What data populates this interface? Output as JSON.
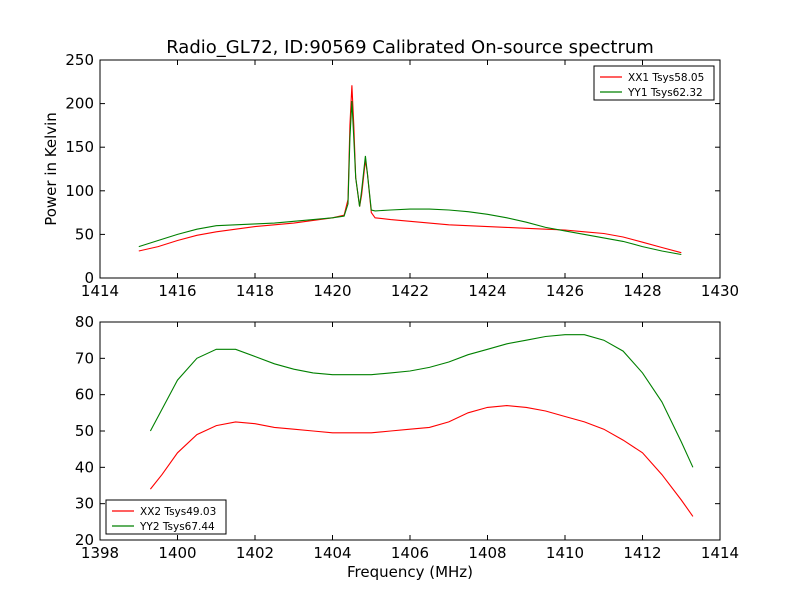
{
  "figure": {
    "title": "Radio_GL72, ID:90569 Calibrated On-source spectrum",
    "xlabel": "Frequency (MHz)"
  },
  "chart_data": [
    {
      "type": "line",
      "ylabel": "Power in Kelvin",
      "xlim": [
        1414,
        1430
      ],
      "ylim": [
        0,
        250
      ],
      "xticks": [
        1414,
        1416,
        1418,
        1420,
        1422,
        1424,
        1426,
        1428,
        1430
      ],
      "yticks": [
        0,
        50,
        100,
        150,
        200,
        250
      ],
      "legend_position": "top-right",
      "series": [
        {
          "name": "XX1 Tsys58.05",
          "color": "#ff0000",
          "points": [
            [
              1415.0,
              31
            ],
            [
              1415.5,
              36
            ],
            [
              1416.0,
              43
            ],
            [
              1416.5,
              49
            ],
            [
              1417.0,
              53
            ],
            [
              1417.5,
              56
            ],
            [
              1418.0,
              59
            ],
            [
              1418.5,
              61
            ],
            [
              1419.0,
              63
            ],
            [
              1419.5,
              66
            ],
            [
              1420.0,
              69
            ],
            [
              1420.3,
              72
            ],
            [
              1420.4,
              90
            ],
            [
              1420.45,
              175
            ],
            [
              1420.5,
              221
            ],
            [
              1420.55,
              175
            ],
            [
              1420.6,
              115
            ],
            [
              1420.7,
              82
            ],
            [
              1420.75,
              95
            ],
            [
              1420.85,
              135
            ],
            [
              1420.9,
              120
            ],
            [
              1421.0,
              75
            ],
            [
              1421.1,
              69
            ],
            [
              1421.5,
              67
            ],
            [
              1422.0,
              65
            ],
            [
              1422.5,
              63
            ],
            [
              1423.0,
              61
            ],
            [
              1423.5,
              60
            ],
            [
              1424.0,
              59
            ],
            [
              1424.5,
              58
            ],
            [
              1425.0,
              57
            ],
            [
              1425.5,
              56
            ],
            [
              1426.0,
              55
            ],
            [
              1426.5,
              53
            ],
            [
              1427.0,
              51
            ],
            [
              1427.5,
              47
            ],
            [
              1428.0,
              41
            ],
            [
              1428.5,
              35
            ],
            [
              1429.0,
              29
            ]
          ]
        },
        {
          "name": "YY1 Tsys62.32",
          "color": "#008000",
          "points": [
            [
              1415.0,
              36
            ],
            [
              1415.5,
              43
            ],
            [
              1416.0,
              50
            ],
            [
              1416.5,
              56
            ],
            [
              1417.0,
              60
            ],
            [
              1417.5,
              61
            ],
            [
              1418.0,
              62
            ],
            [
              1418.5,
              63
            ],
            [
              1419.0,
              65
            ],
            [
              1419.5,
              67
            ],
            [
              1420.0,
              69
            ],
            [
              1420.3,
              71
            ],
            [
              1420.4,
              85
            ],
            [
              1420.45,
              160
            ],
            [
              1420.5,
              203
            ],
            [
              1420.55,
              160
            ],
            [
              1420.6,
              115
            ],
            [
              1420.7,
              82
            ],
            [
              1420.75,
              100
            ],
            [
              1420.85,
              140
            ],
            [
              1420.9,
              120
            ],
            [
              1421.0,
              78
            ],
            [
              1421.1,
              77
            ],
            [
              1421.5,
              78
            ],
            [
              1422.0,
              79
            ],
            [
              1422.5,
              79
            ],
            [
              1423.0,
              78
            ],
            [
              1423.5,
              76
            ],
            [
              1424.0,
              73
            ],
            [
              1424.5,
              69
            ],
            [
              1425.0,
              64
            ],
            [
              1425.5,
              58
            ],
            [
              1426.0,
              54
            ],
            [
              1426.5,
              50
            ],
            [
              1427.0,
              46
            ],
            [
              1427.5,
              42
            ],
            [
              1428.0,
              36
            ],
            [
              1428.5,
              31
            ],
            [
              1429.0,
              27
            ]
          ]
        }
      ]
    },
    {
      "type": "line",
      "xlabel": "Frequency (MHz)",
      "xlim": [
        1398,
        1414
      ],
      "ylim": [
        20,
        80
      ],
      "xticks": [
        1398,
        1400,
        1402,
        1404,
        1406,
        1408,
        1410,
        1412,
        1414
      ],
      "yticks": [
        20,
        30,
        40,
        50,
        60,
        70,
        80
      ],
      "legend_position": "bottom-left",
      "series": [
        {
          "name": "XX2 Tsys49.03",
          "color": "#ff0000",
          "points": [
            [
              1399.3,
              34
            ],
            [
              1399.6,
              38
            ],
            [
              1400.0,
              44
            ],
            [
              1400.5,
              49
            ],
            [
              1401.0,
              51.5
            ],
            [
              1401.5,
              52.5
            ],
            [
              1402.0,
              52
            ],
            [
              1402.5,
              51
            ],
            [
              1403.0,
              50.5
            ],
            [
              1403.5,
              50
            ],
            [
              1404.0,
              49.5
            ],
            [
              1404.5,
              49.5
            ],
            [
              1405.0,
              49.5
            ],
            [
              1405.5,
              50
            ],
            [
              1406.0,
              50.5
            ],
            [
              1406.5,
              51
            ],
            [
              1407.0,
              52.5
            ],
            [
              1407.5,
              55
            ],
            [
              1408.0,
              56.5
            ],
            [
              1408.5,
              57
            ],
            [
              1409.0,
              56.5
            ],
            [
              1409.5,
              55.5
            ],
            [
              1410.0,
              54
            ],
            [
              1410.5,
              52.5
            ],
            [
              1411.0,
              50.5
            ],
            [
              1411.5,
              47.5
            ],
            [
              1412.0,
              44
            ],
            [
              1412.5,
              38
            ],
            [
              1413.0,
              31
            ],
            [
              1413.3,
              26.5
            ]
          ]
        },
        {
          "name": "YY2 Tsys67.44",
          "color": "#008000",
          "points": [
            [
              1399.3,
              50
            ],
            [
              1399.6,
              56
            ],
            [
              1400.0,
              64
            ],
            [
              1400.5,
              70
            ],
            [
              1401.0,
              72.5
            ],
            [
              1401.5,
              72.5
            ],
            [
              1402.0,
              70.5
            ],
            [
              1402.5,
              68.5
            ],
            [
              1403.0,
              67
            ],
            [
              1403.5,
              66
            ],
            [
              1404.0,
              65.5
            ],
            [
              1404.5,
              65.5
            ],
            [
              1405.0,
              65.5
            ],
            [
              1405.5,
              66
            ],
            [
              1406.0,
              66.5
            ],
            [
              1406.5,
              67.5
            ],
            [
              1407.0,
              69
            ],
            [
              1407.5,
              71
            ],
            [
              1408.0,
              72.5
            ],
            [
              1408.5,
              74
            ],
            [
              1409.0,
              75
            ],
            [
              1409.5,
              76
            ],
            [
              1410.0,
              76.5
            ],
            [
              1410.5,
              76.5
            ],
            [
              1411.0,
              75
            ],
            [
              1411.5,
              72
            ],
            [
              1412.0,
              66
            ],
            [
              1412.5,
              58
            ],
            [
              1413.0,
              47
            ],
            [
              1413.3,
              40
            ]
          ]
        }
      ]
    }
  ]
}
